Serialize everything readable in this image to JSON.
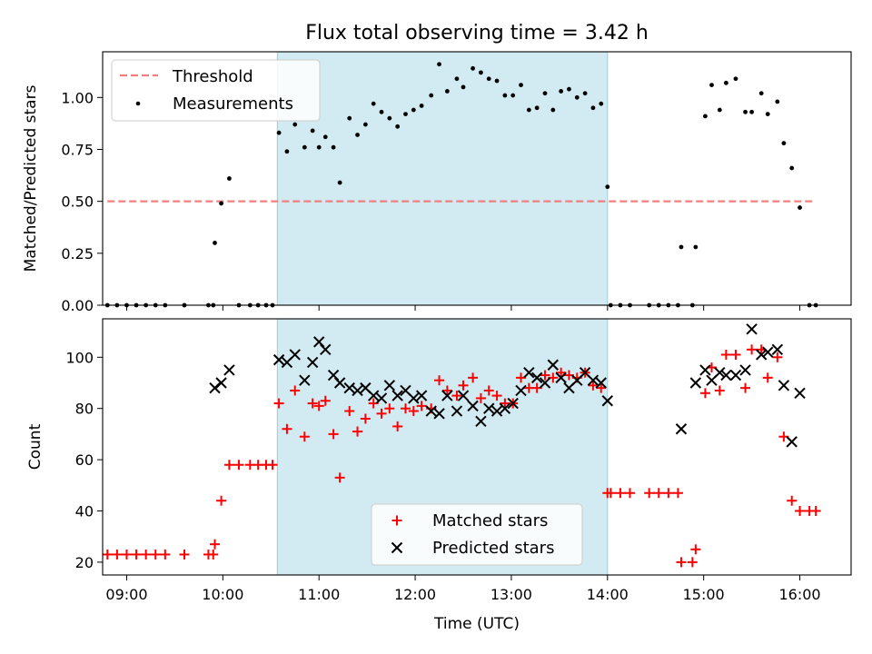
{
  "chart_data": [
    {
      "type": "scatter",
      "title": "Flux total observing time = 3.42 h",
      "xlabel": "",
      "ylabel": "Matched/Predicted stars",
      "xlim": [
        "08:45",
        "16:32"
      ],
      "ylim": [
        0,
        1.22
      ],
      "yticks": [
        "0.00",
        "0.25",
        "0.50",
        "0.75",
        "1.00"
      ],
      "yticks_values": [
        0,
        0.25,
        0.5,
        0.75,
        1.0
      ],
      "grid": false,
      "legend_placement": "upper-left",
      "highlight_span": [
        "10:34",
        "14:00"
      ],
      "highlight_color": "#add8e6",
      "threshold": {
        "name": "Threshold",
        "value": 0.5,
        "x": [
          "08:48",
          "16:10"
        ],
        "color": "#f08080",
        "style": "dashed"
      },
      "series": [
        {
          "name": "Measurements",
          "color": "#000000",
          "marker": "dot",
          "points": [
            [
              "08:48",
              0
            ],
            [
              "08:54",
              0
            ],
            [
              "09:00",
              0
            ],
            [
              "09:06",
              0
            ],
            [
              "09:12",
              0
            ],
            [
              "09:18",
              0
            ],
            [
              "09:24",
              0
            ],
            [
              "09:36",
              0
            ],
            [
              "09:51",
              0
            ],
            [
              "09:54",
              0
            ],
            [
              "09:55",
              0.3
            ],
            [
              "09:59",
              0.49
            ],
            [
              "10:04",
              0.61
            ],
            [
              "10:10",
              0
            ],
            [
              "10:17",
              0
            ],
            [
              "10:22",
              0
            ],
            [
              "10:27",
              0
            ],
            [
              "10:31",
              0
            ],
            [
              "10:35",
              0.83
            ],
            [
              "10:40",
              0.74
            ],
            [
              "10:45",
              0.87
            ],
            [
              "10:51",
              0.76
            ],
            [
              "10:56",
              0.84
            ],
            [
              "11:00",
              0.76
            ],
            [
              "11:04",
              0.81
            ],
            [
              "11:09",
              0.76
            ],
            [
              "11:13",
              0.59
            ],
            [
              "11:19",
              0.9
            ],
            [
              "11:24",
              0.82
            ],
            [
              "11:29",
              0.87
            ],
            [
              "11:34",
              0.97
            ],
            [
              "11:39",
              0.93
            ],
            [
              "11:44",
              0.9
            ],
            [
              "11:49",
              0.86
            ],
            [
              "11:54",
              0.92
            ],
            [
              "11:59",
              0.94
            ],
            [
              "12:04",
              0.96
            ],
            [
              "12:10",
              1.01
            ],
            [
              "12:15",
              1.16
            ],
            [
              "12:20",
              1.03
            ],
            [
              "12:26",
              1.09
            ],
            [
              "12:30",
              1.05
            ],
            [
              "12:36",
              1.14
            ],
            [
              "12:41",
              1.12
            ],
            [
              "12:46",
              1.09
            ],
            [
              "12:51",
              1.08
            ],
            [
              "12:56",
              1.01
            ],
            [
              "13:01",
              1.01
            ],
            [
              "13:06",
              1.06
            ],
            [
              "13:11",
              0.94
            ],
            [
              "13:16",
              0.95
            ],
            [
              "13:21",
              1.02
            ],
            [
              "13:26",
              0.94
            ],
            [
              "13:31",
              1.03
            ],
            [
              "13:36",
              1.04
            ],
            [
              "13:41",
              1.0
            ],
            [
              "13:46",
              1.02
            ],
            [
              "13:51",
              0.95
            ],
            [
              "13:56",
              0.97
            ],
            [
              "14:00",
              0.57
            ],
            [
              "14:02",
              0
            ],
            [
              "14:08",
              0
            ],
            [
              "14:14",
              0
            ],
            [
              "14:26",
              0
            ],
            [
              "14:32",
              0
            ],
            [
              "14:38",
              0
            ],
            [
              "14:44",
              0
            ],
            [
              "14:46",
              0.28
            ],
            [
              "14:53",
              0
            ],
            [
              "14:55",
              0.28
            ],
            [
              "15:01",
              0.91
            ],
            [
              "15:05",
              1.06
            ],
            [
              "15:10",
              0.94
            ],
            [
              "15:14",
              1.07
            ],
            [
              "15:20",
              1.09
            ],
            [
              "15:26",
              0.93
            ],
            [
              "15:30",
              0.93
            ],
            [
              "15:36",
              1.02
            ],
            [
              "15:40",
              0.92
            ],
            [
              "15:46",
              0.98
            ],
            [
              "15:50",
              0.78
            ],
            [
              "15:55",
              0.66
            ],
            [
              "16:00",
              0.47
            ],
            [
              "16:06",
              0
            ],
            [
              "16:10",
              0
            ]
          ]
        }
      ]
    },
    {
      "type": "scatter",
      "title": "",
      "xlabel": "Time (UTC)",
      "ylabel": "Count",
      "xlim": [
        "08:45",
        "16:32"
      ],
      "xticks": [
        "09:00",
        "10:00",
        "11:00",
        "12:00",
        "13:00",
        "14:00",
        "15:00",
        "16:00"
      ],
      "ylim": [
        15,
        115
      ],
      "yticks": [
        "20",
        "40",
        "60",
        "80",
        "100"
      ],
      "yticks_values": [
        20,
        40,
        60,
        80,
        100
      ],
      "grid": false,
      "legend_placement": "lower-center",
      "highlight_span": [
        "10:34",
        "14:00"
      ],
      "highlight_color": "#add8e6",
      "series": [
        {
          "name": "Matched stars",
          "color": "#ff0000",
          "marker": "plus",
          "points": [
            [
              "08:48",
              23
            ],
            [
              "08:54",
              23
            ],
            [
              "09:00",
              23
            ],
            [
              "09:06",
              23
            ],
            [
              "09:12",
              23
            ],
            [
              "09:18",
              23
            ],
            [
              "09:24",
              23
            ],
            [
              "09:36",
              23
            ],
            [
              "09:51",
              23
            ],
            [
              "09:54",
              23
            ],
            [
              "09:55",
              27
            ],
            [
              "09:59",
              44
            ],
            [
              "10:04",
              58
            ],
            [
              "10:10",
              58
            ],
            [
              "10:17",
              58
            ],
            [
              "10:22",
              58
            ],
            [
              "10:27",
              58
            ],
            [
              "10:31",
              58
            ],
            [
              "10:35",
              82
            ],
            [
              "10:40",
              72
            ],
            [
              "10:45",
              87
            ],
            [
              "10:51",
              69
            ],
            [
              "10:56",
              82
            ],
            [
              "11:00",
              81
            ],
            [
              "11:04",
              83
            ],
            [
              "11:09",
              70
            ],
            [
              "11:13",
              53
            ],
            [
              "11:19",
              79
            ],
            [
              "11:24",
              71
            ],
            [
              "11:29",
              76
            ],
            [
              "11:34",
              82
            ],
            [
              "11:39",
              78
            ],
            [
              "11:44",
              80
            ],
            [
              "11:49",
              73
            ],
            [
              "11:54",
              80
            ],
            [
              "11:59",
              79
            ],
            [
              "12:04",
              81
            ],
            [
              "12:10",
              80
            ],
            [
              "12:15",
              91
            ],
            [
              "12:20",
              87
            ],
            [
              "12:26",
              85
            ],
            [
              "12:30",
              89
            ],
            [
              "12:36",
              92
            ],
            [
              "12:41",
              84
            ],
            [
              "12:46",
              87
            ],
            [
              "12:51",
              85
            ],
            [
              "12:56",
              82
            ],
            [
              "13:01",
              82
            ],
            [
              "13:06",
              92
            ],
            [
              "13:11",
              88
            ],
            [
              "13:16",
              88
            ],
            [
              "13:21",
              93
            ],
            [
              "13:26",
              92
            ],
            [
              "13:31",
              94
            ],
            [
              "13:36",
              93
            ],
            [
              "13:41",
              92
            ],
            [
              "13:46",
              94
            ],
            [
              "13:51",
              89
            ],
            [
              "13:56",
              88
            ],
            [
              "14:00",
              47
            ],
            [
              "14:02",
              47
            ],
            [
              "14:08",
              47
            ],
            [
              "14:14",
              47
            ],
            [
              "14:26",
              47
            ],
            [
              "14:32",
              47
            ],
            [
              "14:38",
              47
            ],
            [
              "14:44",
              47
            ],
            [
              "14:46",
              20
            ],
            [
              "14:53",
              20
            ],
            [
              "14:55",
              25
            ],
            [
              "15:01",
              86
            ],
            [
              "15:05",
              96
            ],
            [
              "15:10",
              87
            ],
            [
              "15:14",
              101
            ],
            [
              "15:20",
              101
            ],
            [
              "15:26",
              88
            ],
            [
              "15:30",
              103
            ],
            [
              "15:36",
              103
            ],
            [
              "15:40",
              92
            ],
            [
              "15:46",
              100
            ],
            [
              "15:50",
              69
            ],
            [
              "15:55",
              44
            ],
            [
              "16:00",
              40
            ],
            [
              "16:06",
              40
            ],
            [
              "16:10",
              40
            ]
          ]
        },
        {
          "name": "Predicted stars",
          "color": "#000000",
          "marker": "x",
          "points": [
            [
              "09:55",
              88
            ],
            [
              "09:59",
              90
            ],
            [
              "10:04",
              95
            ],
            [
              "10:35",
              99
            ],
            [
              "10:40",
              98
            ],
            [
              "10:45",
              101
            ],
            [
              "10:51",
              91
            ],
            [
              "10:56",
              98
            ],
            [
              "11:00",
              106
            ],
            [
              "11:04",
              103
            ],
            [
              "11:09",
              93
            ],
            [
              "11:13",
              90
            ],
            [
              "11:19",
              88
            ],
            [
              "11:24",
              87
            ],
            [
              "11:29",
              88
            ],
            [
              "11:34",
              85
            ],
            [
              "11:39",
              84
            ],
            [
              "11:44",
              89
            ],
            [
              "11:49",
              85
            ],
            [
              "11:54",
              87
            ],
            [
              "11:59",
              84
            ],
            [
              "12:04",
              85
            ],
            [
              "12:10",
              79
            ],
            [
              "12:15",
              78
            ],
            [
              "12:20",
              85
            ],
            [
              "12:26",
              79
            ],
            [
              "12:30",
              85
            ],
            [
              "12:36",
              81
            ],
            [
              "12:41",
              75
            ],
            [
              "12:46",
              80
            ],
            [
              "12:51",
              79
            ],
            [
              "12:56",
              80
            ],
            [
              "13:01",
              82
            ],
            [
              "13:06",
              87
            ],
            [
              "13:11",
              94
            ],
            [
              "13:16",
              92
            ],
            [
              "13:21",
              90
            ],
            [
              "13:26",
              97
            ],
            [
              "13:31",
              92
            ],
            [
              "13:36",
              88
            ],
            [
              "13:41",
              91
            ],
            [
              "13:46",
              94
            ],
            [
              "13:51",
              91
            ],
            [
              "13:56",
              90
            ],
            [
              "14:00",
              83
            ],
            [
              "14:46",
              72
            ],
            [
              "14:55",
              90
            ],
            [
              "15:01",
              95
            ],
            [
              "15:05",
              91
            ],
            [
              "15:10",
              94
            ],
            [
              "15:14",
              93
            ],
            [
              "15:20",
              93
            ],
            [
              "15:26",
              95
            ],
            [
              "15:30",
              111
            ],
            [
              "15:36",
              101
            ],
            [
              "15:40",
              102
            ],
            [
              "15:46",
              103
            ],
            [
              "15:50",
              89
            ],
            [
              "15:55",
              67
            ],
            [
              "16:00",
              86
            ]
          ]
        }
      ]
    }
  ]
}
